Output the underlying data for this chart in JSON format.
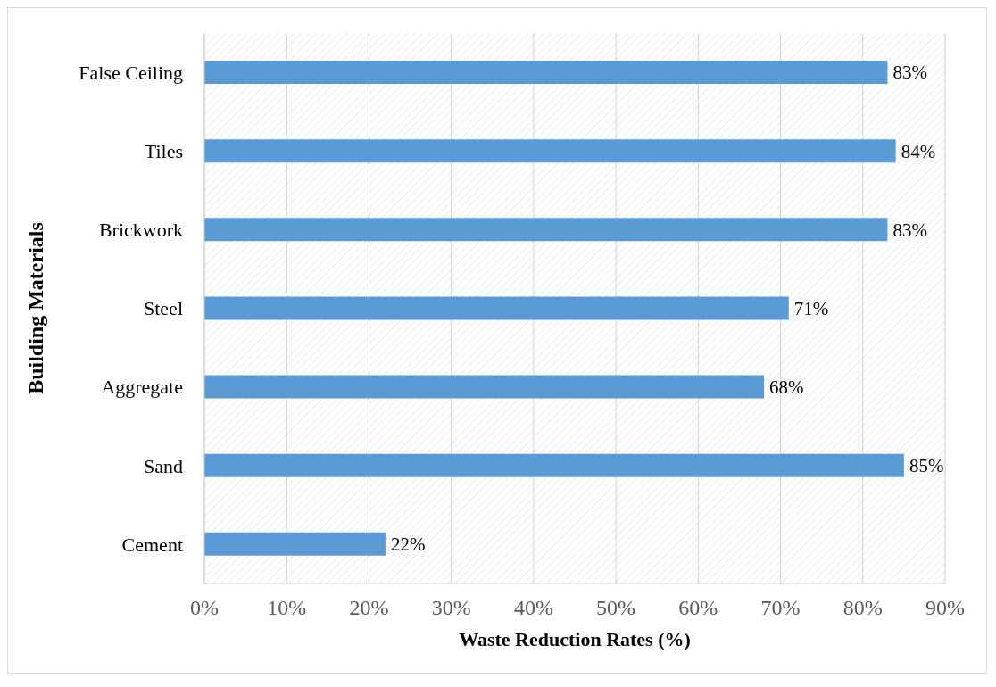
{
  "chart_data": {
    "type": "bar",
    "orientation": "horizontal",
    "xlabel": "Waste Reduction Rates (%)",
    "ylabel": "Building Materials",
    "categories": [
      "False Ceiling",
      "Tiles",
      "Brickwork",
      "Steel",
      "Aggregate",
      "Sand",
      "Cement"
    ],
    "values": [
      83,
      84,
      83,
      71,
      68,
      85,
      22
    ],
    "value_labels": [
      "83%",
      "84%",
      "83%",
      "71%",
      "68%",
      "85%",
      "22%"
    ],
    "color": "#5b9bd5",
    "xlim": [
      0,
      90
    ],
    "xticks": [
      {
        "value": 0,
        "label": "0%"
      },
      {
        "value": 10,
        "label": "10%"
      },
      {
        "value": 20,
        "label": "20%"
      },
      {
        "value": 30,
        "label": "30%"
      },
      {
        "value": 40,
        "label": "40%"
      },
      {
        "value": 50,
        "label": "50%"
      },
      {
        "value": 60,
        "label": "60%"
      },
      {
        "value": 70,
        "label": "70%"
      },
      {
        "value": 80,
        "label": "80%"
      },
      {
        "value": 90,
        "label": "90%"
      }
    ],
    "grid": "x",
    "legend": false
  }
}
